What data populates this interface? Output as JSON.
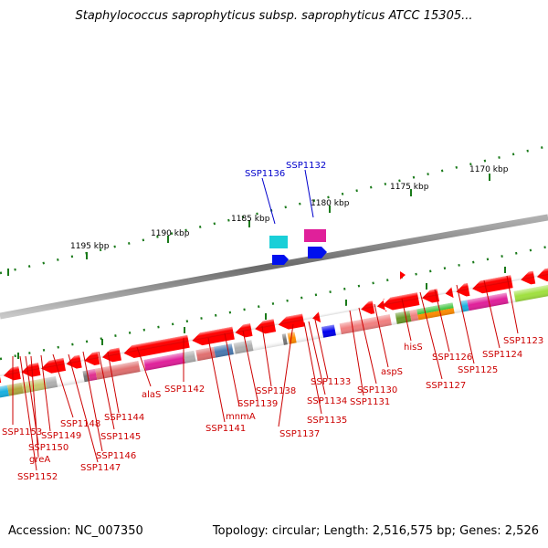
{
  "header": {
    "title": "Staphylococcus saprophyticus subsp. saprophyticus ATCC 15305..."
  },
  "footer": {
    "accession": "Accession: NC_007350",
    "topology": "Topology: circular; Length: 2,516,575 bp; Genes: 2,526"
  },
  "scale_labels": [
    "1195 kbp",
    "1190 kbp",
    "1185 kbp",
    "1180 kbp",
    "1175 kbp",
    "1170 kbp"
  ],
  "gene_labels": {
    "red": [
      "SSP1153",
      "SSP1152",
      "SSP1150",
      "greA",
      "SSP1149",
      "SSP1148",
      "SSP1147",
      "SSP1146",
      "SSP1145",
      "SSP1144",
      "alaS",
      "SSP1142",
      "SSP1141",
      "mnmA",
      "SSP1139",
      "SSP1138",
      "SSP1137",
      "SSP1135",
      "SSP1134",
      "SSP1133",
      "SSP1131",
      "SSP1130",
      "aspS",
      "hisS",
      "SSP1127",
      "SSP1126",
      "SSP1125",
      "SSP1124",
      "SSP1123"
    ],
    "blue": [
      "SSP1136",
      "SSP1132"
    ]
  },
  "colors": {
    "backbone": "#777777",
    "gene_red": "#ff0000",
    "label_red": "#cc0000",
    "label_blue": "#0000cc",
    "tick_green": "#1a7a1a"
  }
}
